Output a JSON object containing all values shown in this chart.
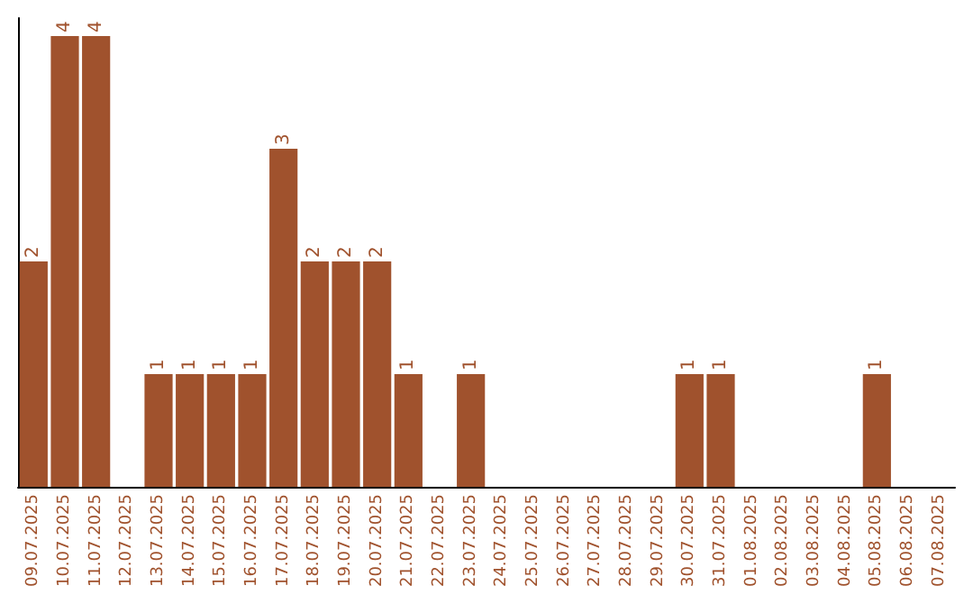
{
  "chart_data": {
    "type": "bar",
    "categories": [
      "09.07.2025",
      "10.07.2025",
      "11.07.2025",
      "12.07.2025",
      "13.07.2025",
      "14.07.2025",
      "15.07.2025",
      "16.07.2025",
      "17.07.2025",
      "18.07.2025",
      "19.07.2025",
      "20.07.2025",
      "21.07.2025",
      "22.07.2025",
      "23.07.2025",
      "24.07.2025",
      "25.07.2025",
      "26.07.2025",
      "27.07.2025",
      "28.07.2025",
      "29.07.2025",
      "30.07.2025",
      "31.07.2025",
      "01.08.2025",
      "02.08.2025",
      "03.08.2025",
      "04.08.2025",
      "05.08.2025",
      "06.08.2025",
      "07.08.2025"
    ],
    "values": [
      2,
      4,
      4,
      0,
      1,
      1,
      1,
      1,
      3,
      2,
      2,
      2,
      1,
      0,
      1,
      0,
      0,
      0,
      0,
      0,
      0,
      1,
      1,
      0,
      0,
      0,
      0,
      1,
      0,
      0
    ],
    "value_labels": [
      "2",
      "4",
      "4",
      null,
      "1",
      "1",
      "1",
      "1",
      "3",
      "2",
      "2",
      "2",
      "1",
      null,
      "1",
      null,
      null,
      null,
      null,
      null,
      null,
      "1",
      "1",
      null,
      null,
      null,
      null,
      "1",
      null,
      null
    ],
    "color": "#a0522d",
    "ylim": [
      0,
      4.16
    ],
    "tick_labels": "x",
    "grid": false
  }
}
